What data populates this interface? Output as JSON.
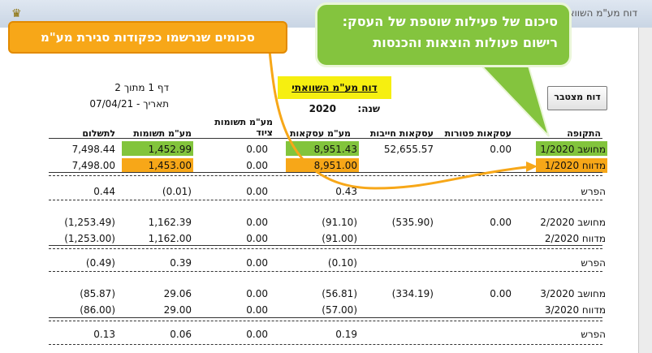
{
  "window": {
    "title": "דוח מע\"מ השוואתי"
  },
  "callouts": {
    "orange_text": "סכומים שנרשמו כפקודות סגירת מע\"מ",
    "green_line1": "סיכום של פעילות שוטפת של העסק:",
    "green_line2": "רישום פעולות הוצאות והכנסות"
  },
  "report": {
    "title": "דוח מע\"מ השוואתי",
    "year_label": "שנה:",
    "year": "2020",
    "page_info": "דף 1 מתוך 2",
    "date_info": "תאריך - 07/04/21",
    "cumulative_button": "דוח מצטבר"
  },
  "columns": {
    "period": "התקופה",
    "exempt": "עסקאות פטורות",
    "taxable": "עסקאות חייבות",
    "vat_sales": "מע\"מ עסקאות",
    "vat_equipment": "מע\"מ תשומות ציוד",
    "vat_inputs": "מע\"מ תשומות",
    "to_pay": "לתשלום"
  },
  "rows": {
    "r1_calc": {
      "label": "מחושב",
      "period": "1/2020",
      "exempt": "0.00",
      "taxable": "52,655.57",
      "vat_sales": "8,951.43",
      "vat_equipment": "0.00",
      "vat_inputs": "1,452.99",
      "to_pay": "7,498.44"
    },
    "r1_rep": {
      "label": "מדווח",
      "period": "1/2020",
      "exempt": "",
      "taxable": "",
      "vat_sales": "8,951.00",
      "vat_equipment": "0.00",
      "vat_inputs": "1,453.00",
      "to_pay": "7,498.00"
    },
    "r1_diff": {
      "label": "הפרש",
      "vat_sales": "0.43",
      "vat_equipment": "0.00",
      "vat_inputs": "(0.01)",
      "to_pay": "0.44"
    },
    "r2_calc": {
      "label": "מחושב",
      "period": "2/2020",
      "exempt": "0.00",
      "taxable": "(535.90)",
      "vat_sales": "(91.10)",
      "vat_equipment": "0.00",
      "vat_inputs": "1,162.39",
      "to_pay": "(1,253.49)"
    },
    "r2_rep": {
      "label": "מדווח",
      "period": "2/2020",
      "vat_sales": "(91.00)",
      "vat_equipment": "0.00",
      "vat_inputs": "1,162.00",
      "to_pay": "(1,253.00)"
    },
    "r2_diff": {
      "label": "הפרש",
      "vat_sales": "(0.10)",
      "vat_equipment": "0.00",
      "vat_inputs": "0.39",
      "to_pay": "(0.49)"
    },
    "r3_calc": {
      "label": "מחושב",
      "period": "3/2020",
      "exempt": "0.00",
      "taxable": "(334.19)",
      "vat_sales": "(56.81)",
      "vat_equipment": "0.00",
      "vat_inputs": "29.06",
      "to_pay": "(85.87)"
    },
    "r3_rep": {
      "label": "מדווח",
      "period": "3/2020",
      "vat_sales": "(57.00)",
      "vat_equipment": "0.00",
      "vat_inputs": "29.00",
      "to_pay": "(86.00)"
    },
    "r3_diff": {
      "label": "הפרש",
      "vat_sales": "0.19",
      "vat_equipment": "0.00",
      "vat_inputs": "0.06",
      "to_pay": "0.13"
    }
  },
  "colors": {
    "highlight_green": "#82c43c",
    "highlight_orange": "#f7a718",
    "title_yellow": "#f6ef10"
  }
}
